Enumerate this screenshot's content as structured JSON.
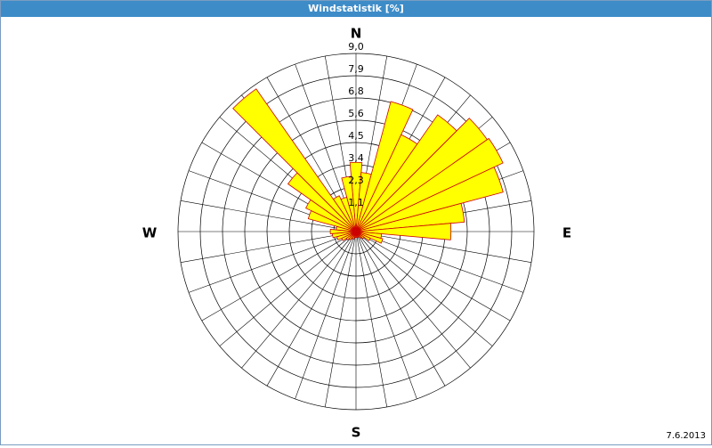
{
  "chart_data": {
    "type": "windrose",
    "title": "Windstatistik [%]",
    "compass": [
      "N",
      "E",
      "S",
      "W"
    ],
    "date": "7.6.2013",
    "x": [
      0,
      10,
      20,
      30,
      40,
      50,
      60,
      70,
      80,
      90,
      100,
      110,
      120,
      130,
      140,
      150,
      160,
      170,
      180,
      190,
      200,
      210,
      220,
      230,
      240,
      250,
      260,
      270,
      280,
      290,
      300,
      310,
      320,
      330,
      340,
      350
    ],
    "values": [
      3.5,
      3.0,
      6.8,
      5.4,
      7.2,
      8.1,
      8.2,
      7.7,
      5.5,
      4.8,
      1.3,
      1.4,
      0.8,
      0.5,
      0.4,
      0.3,
      0.3,
      0.3,
      0.3,
      0.3,
      0.4,
      0.4,
      0.5,
      0.6,
      0.8,
      1.0,
      1.2,
      1.3,
      1.0,
      2.5,
      2.8,
      4.2,
      8.8,
      2.0,
      1.8,
      2.8
    ],
    "sector_width": 10,
    "color": "#ffff00",
    "edge_color": "#cc0000",
    "ylim": [
      0,
      9.0
    ],
    "yticks": [
      {
        "value": 1.125,
        "label": "1,1"
      },
      {
        "value": 2.25,
        "label": "2,3"
      },
      {
        "value": 3.375,
        "label": "3,4"
      },
      {
        "value": 4.5,
        "label": "4,5"
      },
      {
        "value": 5.625,
        "label": "5,6"
      },
      {
        "value": 6.75,
        "label": "6,8"
      },
      {
        "value": 7.875,
        "label": "7,9"
      },
      {
        "value": 9.0,
        "label": "9,0"
      }
    ],
    "grid": true
  }
}
